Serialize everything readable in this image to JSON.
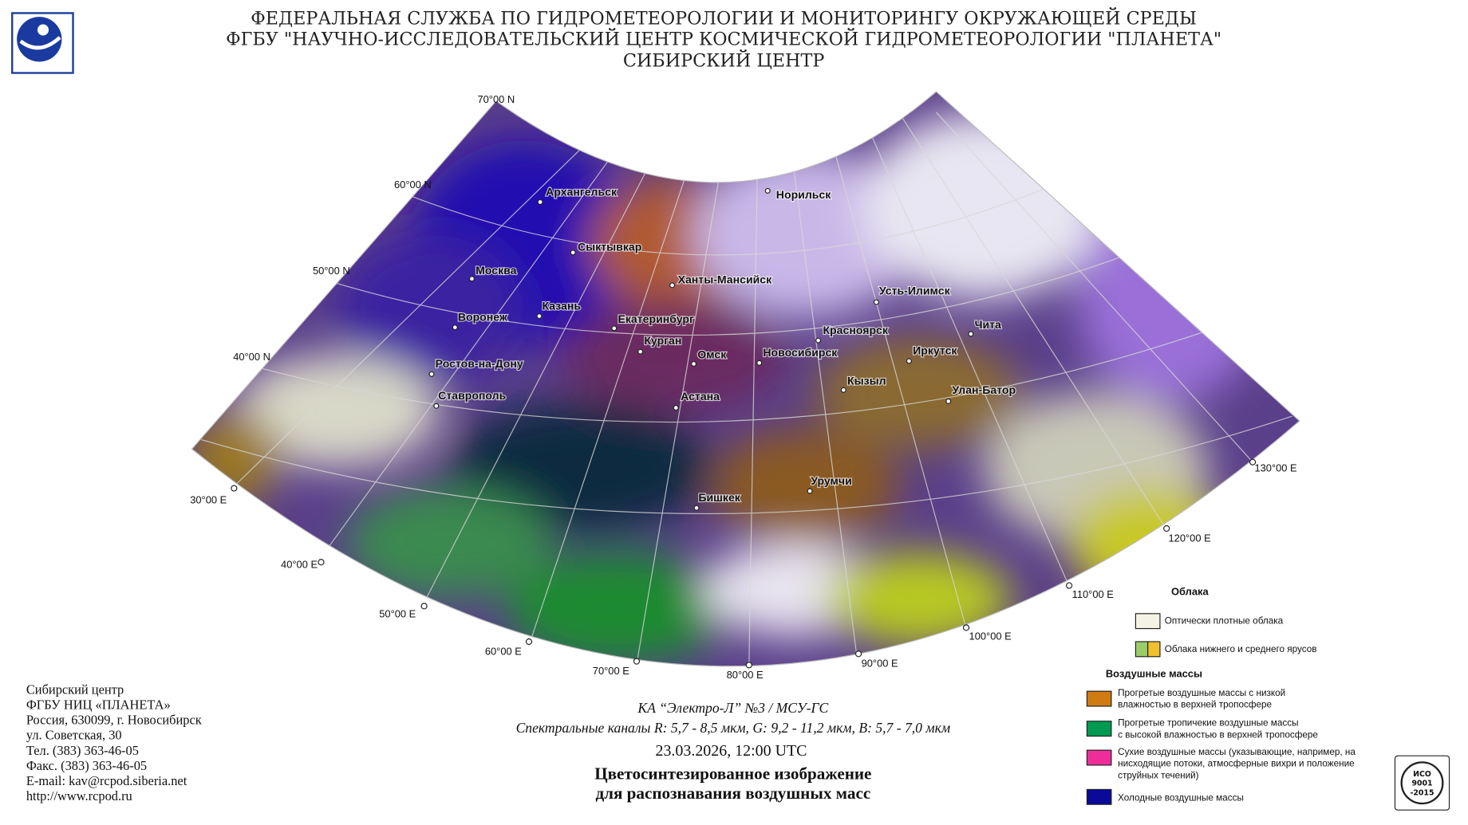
{
  "header": {
    "lines": [
      "ФЕДЕРАЛЬНАЯ СЛУЖБА ПО ГИДРОМЕТЕОРОЛОГИИ И МОНИТОРИНГУ ОКРУЖАЮЩЕЙ СРЕДЫ",
      "ФГБУ \"НАУЧНО-ИССЛЕДОВАТЕЛЬСКИЙ ЦЕНТР КОСМИЧЕСКОЙ ГИДРОМЕТЕОРОЛОГИИ \"ПЛАНЕТА\"",
      "СИБИРСКИЙ ЦЕНТР"
    ]
  },
  "map": {
    "lat_labels": [
      "70°00 N",
      "60°00 N",
      "50°00 N",
      "40°00 N"
    ],
    "lon_labels": [
      "30°00 E",
      "40°00 E",
      "50°00 E",
      "60°00 E",
      "70°00 E",
      "80°00 E",
      "90°00 E",
      "100°00 E",
      "110°00 E",
      "120°00 E",
      "130°00 E"
    ],
    "cities": [
      "Архангельск",
      "Норильск",
      "Сыктывкар",
      "Москва",
      "Ханты-Мансийск",
      "Усть-Илимск",
      "Казань",
      "Воронеж",
      "Екатеринбург",
      "Чита",
      "Красноярск",
      "Курган",
      "Омск",
      "Новосибирск",
      "Иркутск",
      "Ростов-на-Дону",
      "Кызыл",
      "Улан-Батор",
      "Ставрополь",
      "Астана",
      "Урумчи",
      "Бишкек"
    ]
  },
  "legend": {
    "clouds_title": "Облака",
    "clouds": [
      [
        "Оптически плотные облака"
      ],
      [
        "Облака нижнего и среднего ярусов"
      ]
    ],
    "air_title": "Воздушные массы",
    "air": [
      [
        "Прогретые воздушные массы с низкой",
        "влажностью в верхней тропосфере"
      ],
      [
        "Прогретые тропичекие воздушные массы",
        "с высокой влажностью в верхней тропосфере"
      ],
      [
        "Сухие воздушные массы (указывающие, например, на",
        "нисходящие потоки, атмосферные вихри и положение",
        "струйных течений)"
      ],
      [
        "Холодные воздушные массы"
      ]
    ]
  },
  "contact": [
    "Сибирский центр",
    "ФГБУ НИЦ «ПЛАНЕТА»",
    "Россия, 630099, г. Новосибирск",
    "ул. Советская, 30",
    "Тел. (383) 363-46-05",
    "Факс. (383) 363-46-05",
    "E-mail: kav@rcpod.siberia.net",
    "http://www.rcpod.ru"
  ],
  "caption": {
    "satellite": "КА “Электро-Л” №3 / МСУ-ГС",
    "channels": "Спектральные каналы R: 5,7 - 8,5 мкм, G: 9,2 - 11,2 мкм, B: 5,7 - 7,0 мкм",
    "datetime": "23.03.2026, 12:00 UTC",
    "title_lines": [
      "Цветосинтезированное изображение",
      "для распознавания воздушных масс"
    ]
  },
  "cert": [
    "ИСО",
    "9001",
    "-2015"
  ]
}
